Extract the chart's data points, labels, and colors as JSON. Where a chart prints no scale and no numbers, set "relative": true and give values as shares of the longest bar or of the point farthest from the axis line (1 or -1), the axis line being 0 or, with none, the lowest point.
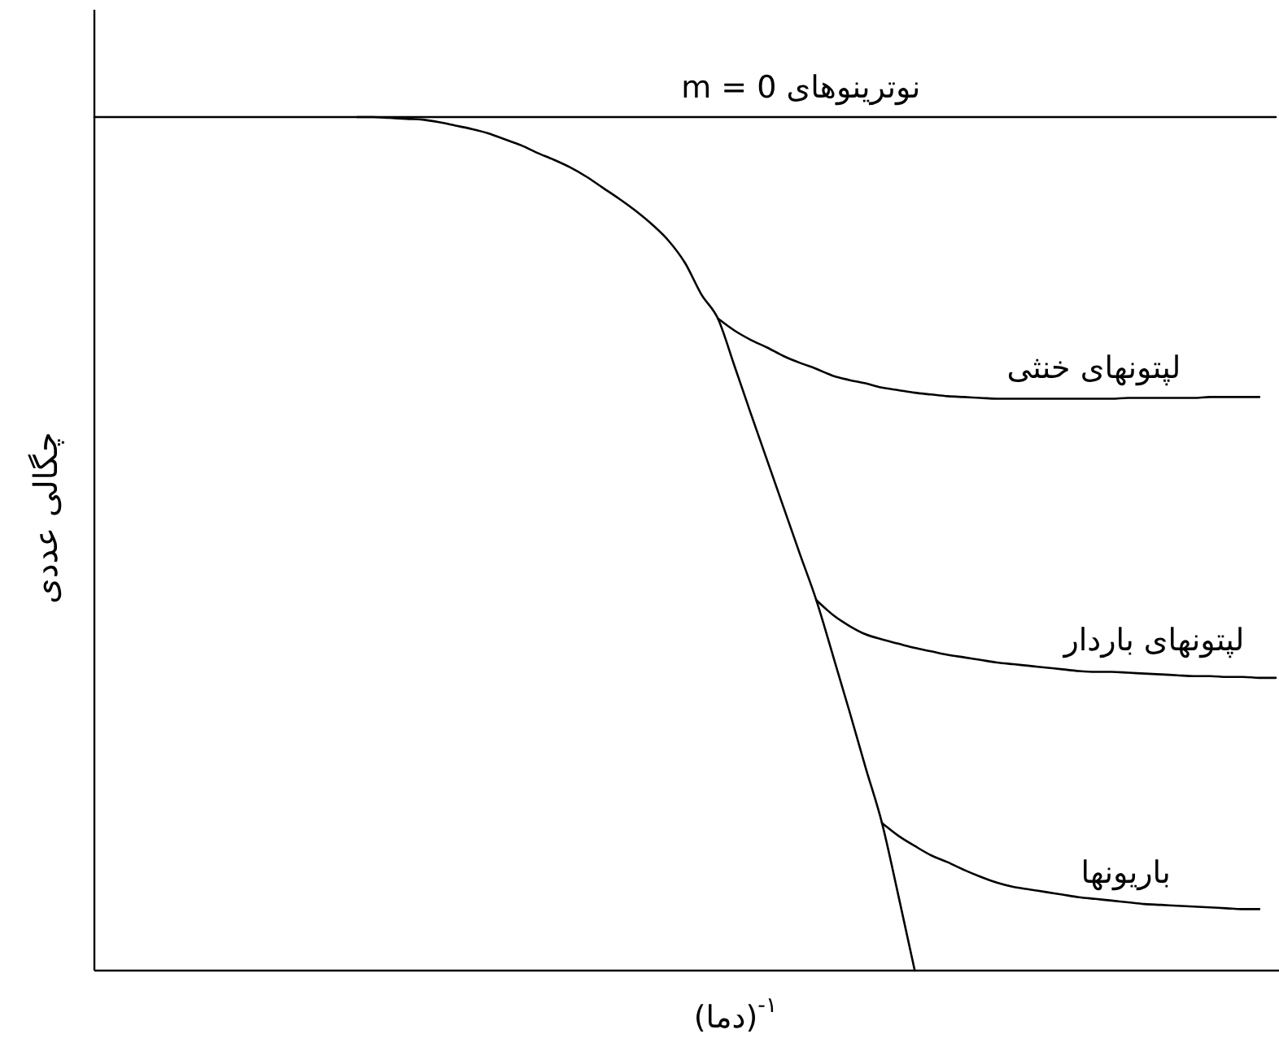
{
  "chart_data": {
    "type": "line",
    "relative": true,
    "xlabel": "(دما)$^{-۱}$",
    "ylabel": "چگالی عددی",
    "categories": [
      null,
      null,
      null,
      null,
      null,
      null,
      null,
      null,
      null,
      null,
      null,
      null,
      null,
      null,
      null,
      null,
      null,
      null,
      null,
      null,
      null,
      null,
      null,
      null,
      null,
      null,
      null,
      null,
      null,
      null,
      null,
      null,
      null,
      null,
      null,
      null,
      null,
      null,
      null,
      null,
      null,
      null,
      null,
      null,
      null,
      null,
      null,
      null,
      null,
      null,
      null,
      null,
      null,
      null,
      null,
      null,
      null,
      null,
      null,
      null,
      null,
      null,
      null,
      null,
      null,
      null,
      null,
      null,
      null,
      null,
      null,
      null,
      null
    ],
    "series": [
      {
        "name": "نوترینوهای m = 0",
        "color": "#000000",
        "values": [
          1,
          1,
          1,
          1,
          1,
          1,
          1,
          1,
          1,
          1,
          1,
          1,
          1,
          1,
          1,
          1,
          1,
          1,
          1,
          1,
          1,
          1,
          1,
          1,
          1,
          1,
          1,
          1,
          1,
          1,
          1,
          1,
          1,
          1,
          1,
          1,
          1,
          1,
          1,
          1,
          1,
          1,
          1,
          1,
          1,
          1,
          1,
          1,
          1,
          1,
          1,
          1,
          1,
          1,
          1,
          1,
          1,
          1,
          1,
          1,
          1,
          1,
          1,
          1,
          1,
          1,
          1,
          1,
          1,
          1,
          1,
          1,
          1
        ]
      },
      {
        "color": "#000000",
        "values": [
          null,
          null,
          null,
          null,
          null,
          null,
          null,
          null,
          null,
          null,
          null,
          null,
          null,
          null,
          null,
          null,
          1,
          1,
          0.999,
          0.998,
          0.997,
          0.994,
          0.99,
          0.986,
          0.981,
          0.974,
          0.967,
          0.958,
          0.95,
          0.941,
          0.93,
          0.917,
          0.904,
          0.89,
          0.874,
          0.855,
          0.829,
          0.792,
          0.764,
          0.709,
          0.653,
          0.598,
          0.543,
          0.488,
          0.434,
          0.37,
          0.305,
          0.238,
          0.173,
          0.088,
          0,
          null,
          null,
          null,
          null,
          null,
          null,
          null,
          null,
          null,
          null,
          null,
          null,
          null,
          null,
          null,
          null,
          null,
          null,
          null,
          null,
          null,
          null
        ]
      },
      {
        "name": "لپتونهای خنثی",
        "color": "#000000",
        "values": [
          null,
          null,
          null,
          null,
          null,
          null,
          null,
          null,
          null,
          null,
          null,
          null,
          null,
          null,
          null,
          null,
          null,
          null,
          null,
          null,
          null,
          null,
          null,
          null,
          null,
          null,
          null,
          null,
          null,
          null,
          null,
          null,
          null,
          null,
          null,
          null,
          null,
          null,
          0.764,
          0.75,
          0.739,
          0.73,
          0.72,
          0.712,
          0.705,
          0.697,
          0.692,
          0.688,
          0.683,
          0.68,
          0.677,
          0.675,
          0.673,
          0.672,
          0.671,
          0.67,
          0.67,
          0.67,
          0.67,
          0.67,
          0.67,
          0.67,
          0.67,
          0.671,
          0.671,
          0.671,
          0.671,
          0.671,
          0.672,
          0.672,
          0.672,
          0.672,
          null
        ]
      },
      {
        "name": "لپتونهای باردار",
        "color": "#000000",
        "values": [
          null,
          null,
          null,
          null,
          null,
          null,
          null,
          null,
          null,
          null,
          null,
          null,
          null,
          null,
          null,
          null,
          null,
          null,
          null,
          null,
          null,
          null,
          null,
          null,
          null,
          null,
          null,
          null,
          null,
          null,
          null,
          null,
          null,
          null,
          null,
          null,
          null,
          null,
          null,
          null,
          null,
          null,
          null,
          null,
          0.434,
          0.417,
          0.404,
          0.394,
          0.388,
          0.383,
          0.378,
          0.374,
          0.37,
          0.367,
          0.364,
          0.361,
          0.359,
          0.357,
          0.355,
          0.353,
          0.351,
          0.35,
          0.35,
          0.349,
          0.348,
          0.347,
          0.346,
          0.345,
          0.345,
          0.344,
          0.344,
          0.343,
          0.343
        ]
      },
      {
        "name": "باریونها",
        "color": "#000000",
        "values": [
          null,
          null,
          null,
          null,
          null,
          null,
          null,
          null,
          null,
          null,
          null,
          null,
          null,
          null,
          null,
          null,
          null,
          null,
          null,
          null,
          null,
          null,
          null,
          null,
          null,
          null,
          null,
          null,
          null,
          null,
          null,
          null,
          null,
          null,
          null,
          null,
          null,
          null,
          null,
          null,
          null,
          null,
          null,
          null,
          null,
          null,
          null,
          null,
          0.173,
          0.158,
          0.146,
          0.135,
          0.127,
          0.118,
          0.11,
          0.103,
          0.098,
          0.095,
          0.092,
          0.089,
          0.086,
          0.084,
          0.082,
          0.08,
          0.078,
          0.077,
          0.076,
          0.075,
          0.074,
          0.073,
          0.072,
          0.072,
          null
        ]
      }
    ]
  }
}
